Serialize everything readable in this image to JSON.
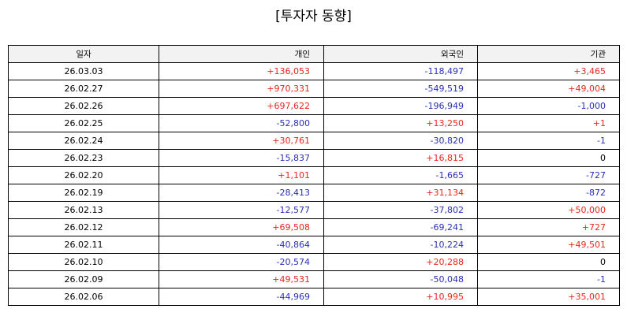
{
  "title": "[투자자 동향]",
  "colors": {
    "positive": "#e8271e",
    "negative": "#2b2fb8",
    "header_bg": "#f2f2f2"
  },
  "table": {
    "headers": [
      "일자",
      "개인",
      "외국인",
      "기관"
    ],
    "rows": [
      [
        "26.03.03",
        "+136,053",
        "-118,497",
        "+3,465"
      ],
      [
        "26.02.27",
        "+970,331",
        "-549,519",
        "+49,004"
      ],
      [
        "26.02.26",
        "+697,622",
        "-196,949",
        "-1,000"
      ],
      [
        "26.02.25",
        "-52,800",
        "+13,250",
        "+1"
      ],
      [
        "26.02.24",
        "+30,761",
        "-30,820",
        "-1"
      ],
      [
        "26.02.23",
        "-15,837",
        "+16,815",
        "0"
      ],
      [
        "26.02.20",
        "+1,101",
        "-1,665",
        "-727"
      ],
      [
        "26.02.19",
        "-28,413",
        "+31,134",
        "-872"
      ],
      [
        "26.02.13",
        "-12,577",
        "-37,802",
        "+50,000"
      ],
      [
        "26.02.12",
        "+69,508",
        "-69,241",
        "+727"
      ],
      [
        "26.02.11",
        "-40,864",
        "-10,224",
        "+49,501"
      ],
      [
        "26.02.10",
        "-20,574",
        "+20,288",
        "0"
      ],
      [
        "26.02.09",
        "+49,531",
        "-50,048",
        "-1"
      ],
      [
        "26.02.06",
        "-44,969",
        "+10,995",
        "+35,001"
      ]
    ]
  }
}
